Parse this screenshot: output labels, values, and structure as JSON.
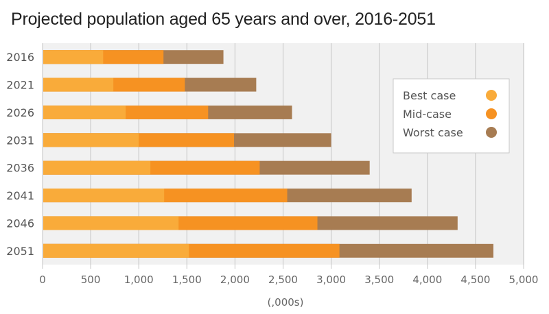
{
  "chart_data": {
    "type": "bar",
    "orientation": "horizontal",
    "layout": "overlaid",
    "title": "Projected population aged 65 years and over, 2016-2051",
    "xlabel": "(,000s)",
    "ylabel": "",
    "xlim": [
      0,
      5000
    ],
    "grid": true,
    "categories": [
      "2016",
      "2021",
      "2026",
      "2031",
      "2036",
      "2041",
      "2046",
      "2051"
    ],
    "x_ticks": [
      0,
      500,
      1000,
      1500,
      2000,
      2500,
      3000,
      3500,
      4000,
      4500,
      5000
    ],
    "x_tick_labels": [
      "0",
      "500",
      "1,000",
      "1,500",
      "2,000",
      "2,500",
      "3,000",
      "3,500",
      "4,000",
      "4,500",
      "5,000"
    ],
    "series": [
      {
        "name": "Best case",
        "color": "#f9ab3a",
        "values": [
          630,
          736,
          864,
          1000,
          1121,
          1264,
          1414,
          1521
        ]
      },
      {
        "name": "Mid-case",
        "color": "#f69222",
        "values": [
          1257,
          1479,
          1721,
          1990,
          2257,
          2543,
          2857,
          3086
        ]
      },
      {
        "name": "Worst case",
        "color": "#a77c52",
        "values": [
          1880,
          2221,
          2593,
          3000,
          3400,
          3836,
          4314,
          4686
        ]
      }
    ],
    "legend": {
      "position": "right",
      "entries": [
        "Best case",
        "Mid-case",
        "Worst case"
      ]
    }
  },
  "colors": {
    "plot_background": "#f1f1f1",
    "grid": "#c4c4c4"
  }
}
